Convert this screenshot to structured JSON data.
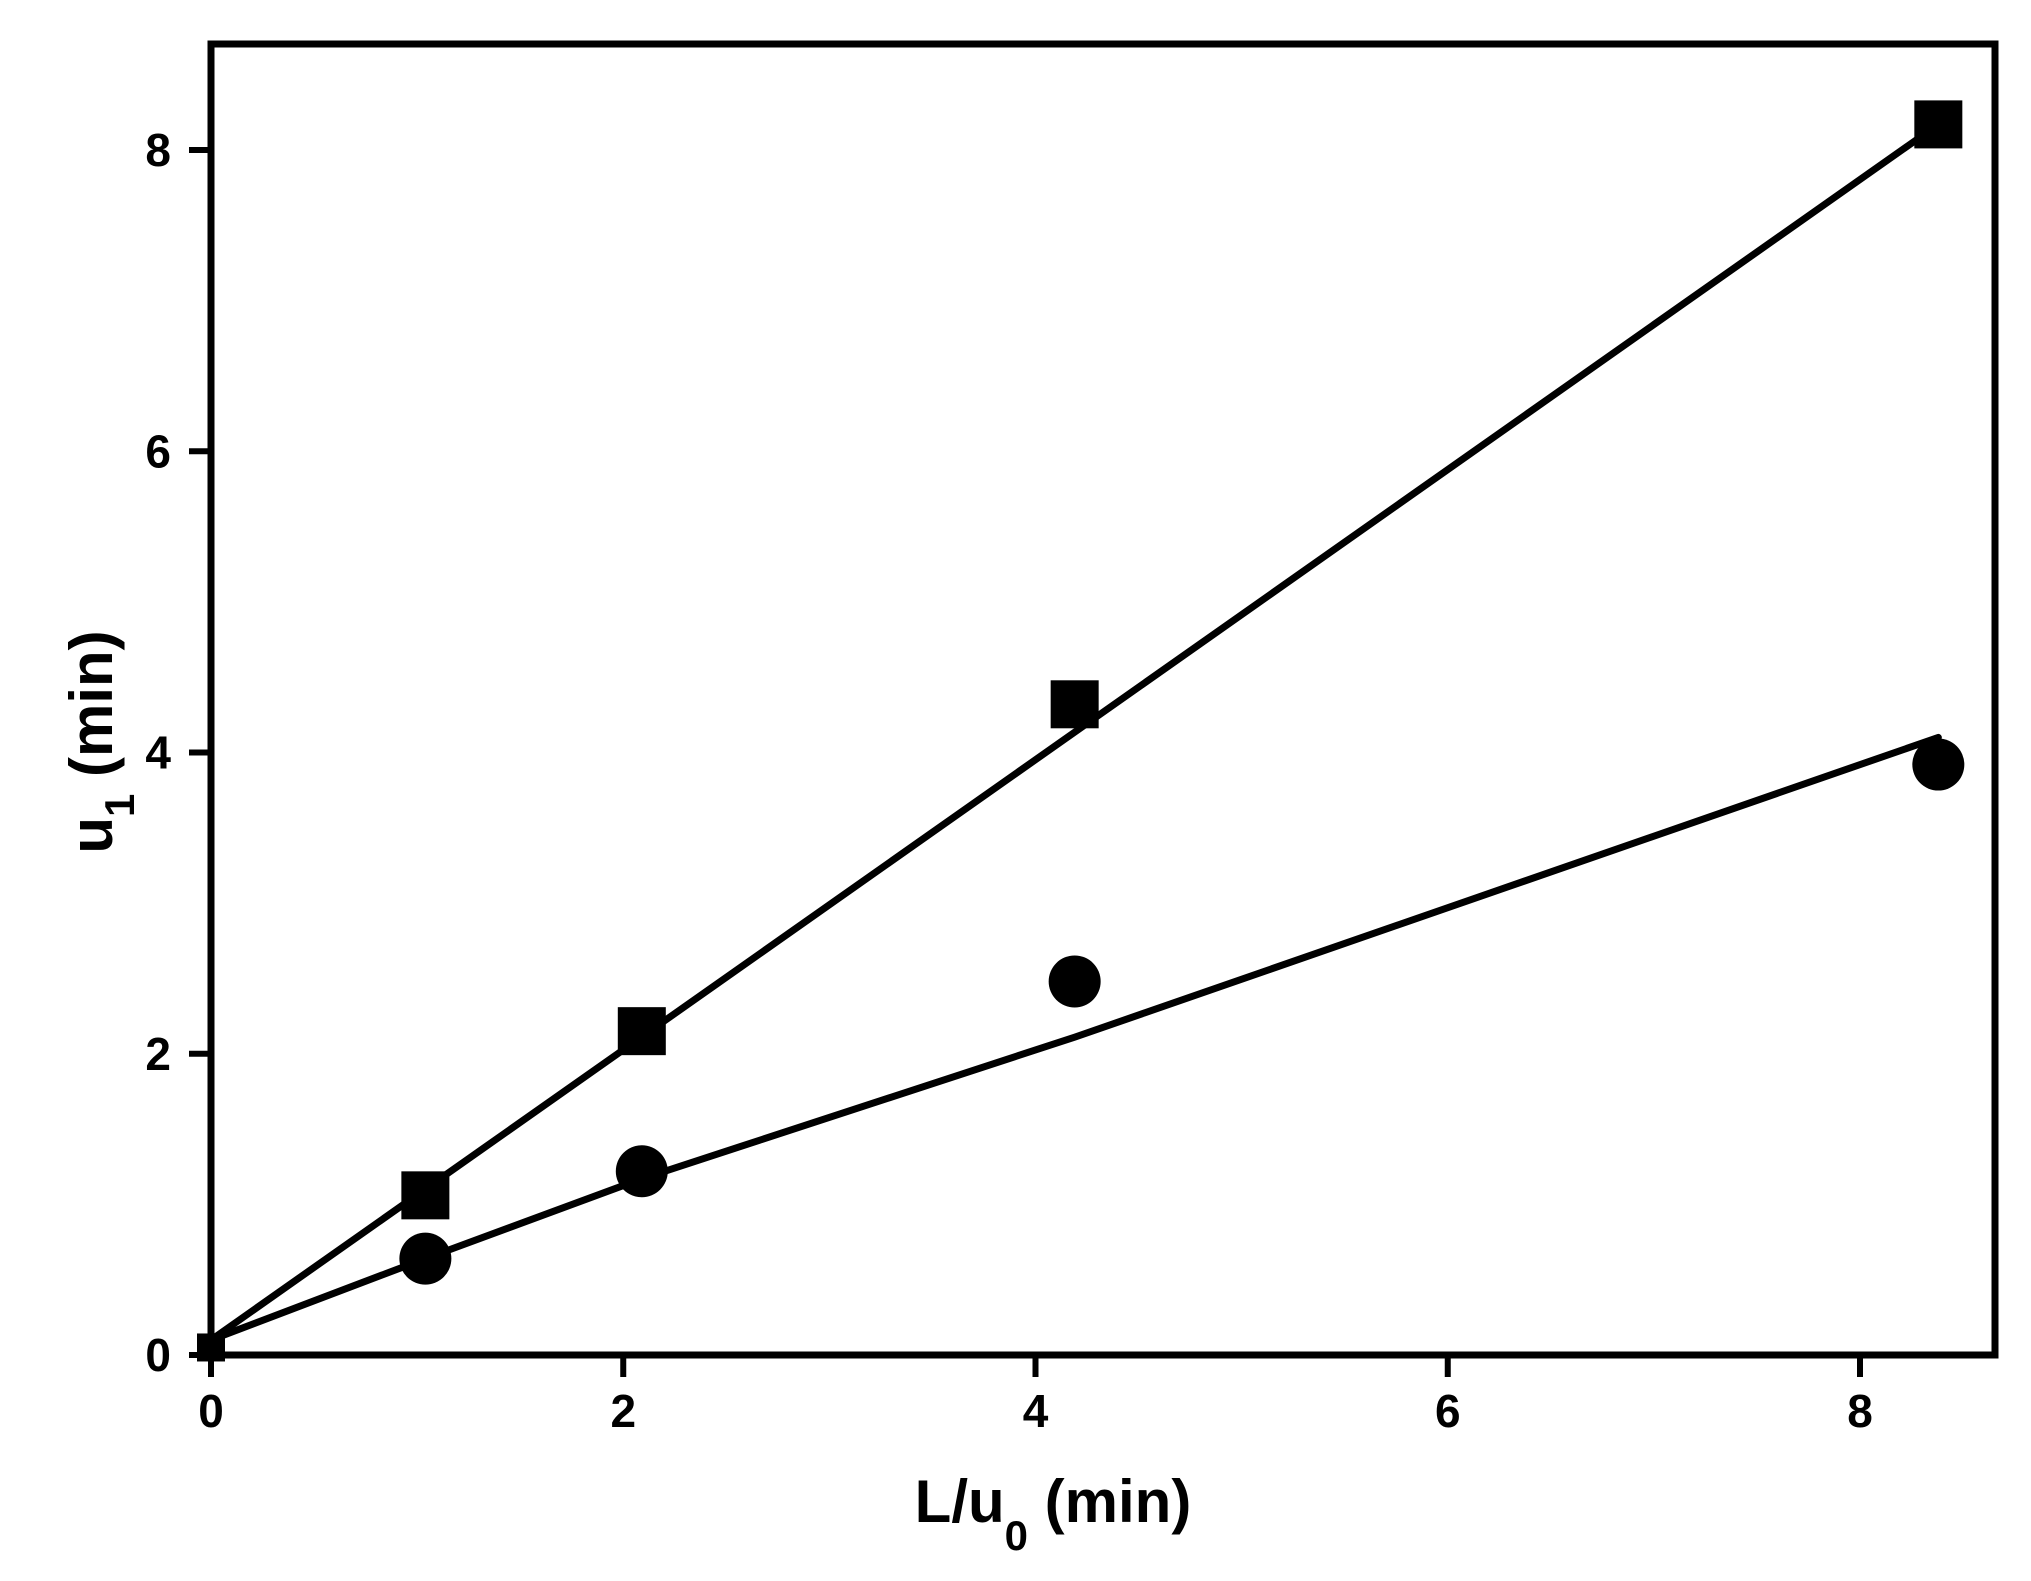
{
  "chart_data": {
    "type": "scatter",
    "title": "",
    "xlabel": {
      "main": "L/u",
      "sub": "0",
      "unit": " (min)"
    },
    "ylabel": {
      "main": "u",
      "sub": "1",
      "unit": " (min)"
    },
    "xlim": [
      0,
      8.7
    ],
    "ylim": [
      0,
      8.7
    ],
    "xticks": [
      0,
      2,
      4,
      6,
      8
    ],
    "yticks": [
      0,
      2,
      4,
      6,
      8
    ],
    "grid": false,
    "legend": "none",
    "series": [
      {
        "marker": "square",
        "color": "#000000",
        "points": [
          [
            0.0,
            0.05
          ],
          [
            1.04,
            1.06
          ],
          [
            2.09,
            2.15
          ],
          [
            4.19,
            4.32
          ],
          [
            8.38,
            8.17
          ]
        ],
        "fit_line": [
          [
            0.0,
            0.1
          ],
          [
            8.38,
            8.17
          ]
        ]
      },
      {
        "marker": "circle",
        "color": "#000000",
        "points": [
          [
            0.0,
            0.05
          ],
          [
            1.04,
            0.64
          ],
          [
            2.09,
            1.22
          ],
          [
            4.19,
            2.48
          ],
          [
            8.38,
            3.92
          ]
        ],
        "fit_line": [
          [
            0.0,
            0.1
          ],
          [
            1.04,
            0.64
          ],
          [
            2.09,
            1.17
          ],
          [
            4.19,
            2.11
          ],
          [
            8.38,
            4.1
          ]
        ]
      }
    ]
  }
}
